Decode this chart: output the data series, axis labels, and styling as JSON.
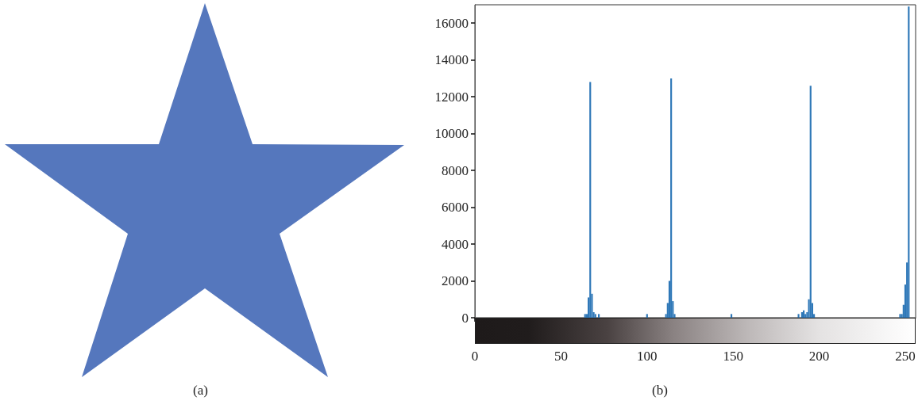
{
  "chart_data": {
    "type": "bar",
    "color": "#2f78b8",
    "annotations": [
      "(a)",
      "(b)"
    ],
    "x": [
      64,
      65,
      66,
      67,
      68,
      69,
      70,
      72,
      100,
      111,
      112,
      113,
      114,
      115,
      116,
      149,
      188,
      190,
      191,
      192,
      193,
      194,
      195,
      196,
      197,
      247,
      248,
      249,
      250,
      251,
      252
    ],
    "values": [
      200,
      200,
      1100,
      12800,
      1300,
      300,
      200,
      200,
      200,
      200,
      800,
      2000,
      13000,
      900,
      200,
      200,
      200,
      300,
      400,
      200,
      300,
      1000,
      12600,
      800,
      200,
      200,
      200,
      700,
      1800,
      3000,
      16900
    ],
    "xlim": [
      0,
      256
    ],
    "xticks": [
      0,
      50,
      100,
      150,
      200,
      250
    ],
    "ylim": [
      0,
      17000
    ],
    "yticks": [
      0,
      2000,
      4000,
      6000,
      8000,
      10000,
      12000,
      14000,
      16000
    ],
    "grid": false
  }
}
